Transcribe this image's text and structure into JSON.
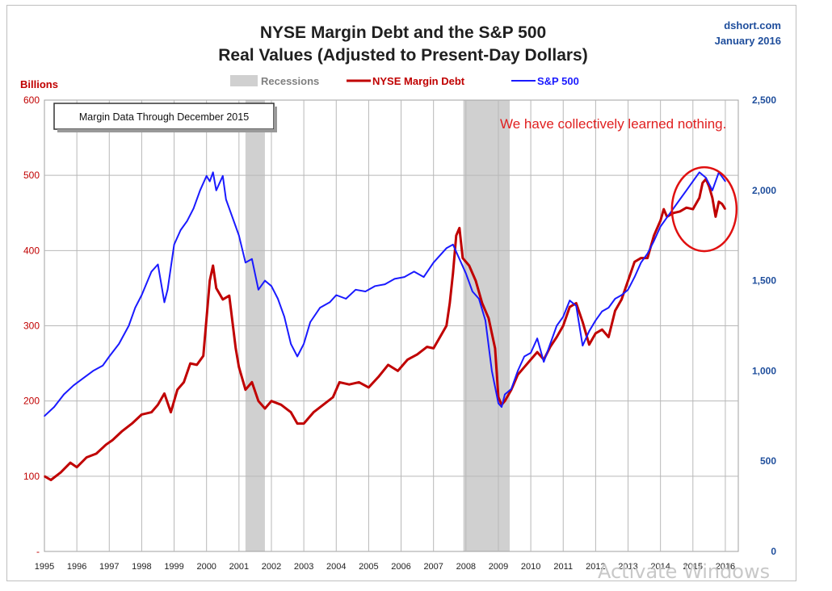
{
  "chart_data": {
    "type": "line",
    "title": "NYSE Margin Debt and the S&P 500",
    "subtitle": "Real Values (Adjusted to Present-Day Dollars)",
    "source": "dshort.com",
    "source_date": "January 2016",
    "annotation": "We have collectively learned nothing.",
    "note_box": "Margin Data Through December 2015",
    "left_axis": {
      "label": "Billions",
      "min": 0,
      "max": 600,
      "ticks": [
        {
          "v": 600,
          "t": "600"
        },
        {
          "v": 500,
          "t": "500"
        },
        {
          "v": 400,
          "t": "400"
        },
        {
          "v": 300,
          "t": "300"
        },
        {
          "v": 200,
          "t": "200"
        },
        {
          "v": 100,
          "t": "100"
        },
        {
          "v": 0,
          "t": "-"
        }
      ]
    },
    "right_axis": {
      "min": 0,
      "max": 2500,
      "ticks": [
        {
          "v": 2500,
          "t": "2,500"
        },
        {
          "v": 2000,
          "t": "2,000"
        },
        {
          "v": 1500,
          "t": "1,500"
        },
        {
          "v": 1000,
          "t": "1,000"
        },
        {
          "v": 500,
          "t": "500"
        },
        {
          "v": 0,
          "t": "0"
        }
      ]
    },
    "x_axis": {
      "min": 1995.0,
      "max": 2016.4,
      "ticks": [
        "1995",
        "1996",
        "1997",
        "1998",
        "1999",
        "2000",
        "2001",
        "2002",
        "2003",
        "2004",
        "2005",
        "2006",
        "2007",
        "2008",
        "2009",
        "2010",
        "2011",
        "2012",
        "2013",
        "2014",
        "2015",
        "2016"
      ]
    },
    "recessions": [
      {
        "start": 2001.2,
        "end": 2001.8
      },
      {
        "start": 2007.92,
        "end": 2009.35
      }
    ],
    "legend": [
      {
        "name": "Recessions",
        "color": "#d0d0d0"
      },
      {
        "name": "NYSE Margin Debt",
        "color": "#c00000"
      },
      {
        "name": "S&P 500",
        "color": "#1a1aff"
      }
    ],
    "series": [
      {
        "name": "NYSE Margin Debt",
        "color": "#c00000",
        "axis": "left",
        "x": [
          1995.0,
          1995.2,
          1995.5,
          1995.8,
          1996.0,
          1996.3,
          1996.6,
          1996.9,
          1997.1,
          1997.4,
          1997.7,
          1998.0,
          1998.3,
          1998.5,
          1998.7,
          1998.9,
          1999.1,
          1999.3,
          1999.5,
          1999.7,
          1999.9,
          2000.0,
          2000.1,
          2000.2,
          2000.3,
          2000.5,
          2000.7,
          2000.9,
          2001.0,
          2001.2,
          2001.4,
          2001.6,
          2001.8,
          2002.0,
          2002.3,
          2002.6,
          2002.8,
          2003.0,
          2003.3,
          2003.6,
          2003.9,
          2004.1,
          2004.4,
          2004.7,
          2005.0,
          2005.3,
          2005.6,
          2005.9,
          2006.2,
          2006.5,
          2006.8,
          2007.0,
          2007.2,
          2007.4,
          2007.5,
          2007.6,
          2007.7,
          2007.8,
          2007.9,
          2008.1,
          2008.3,
          2008.5,
          2008.7,
          2008.9,
          2009.0,
          2009.1,
          2009.2,
          2009.4,
          2009.6,
          2009.8,
          2010.0,
          2010.2,
          2010.4,
          2010.6,
          2010.8,
          2011.0,
          2011.2,
          2011.4,
          2011.6,
          2011.8,
          2012.0,
          2012.2,
          2012.4,
          2012.6,
          2012.8,
          2013.0,
          2013.2,
          2013.4,
          2013.6,
          2013.8,
          2014.0,
          2014.1,
          2014.2,
          2014.4,
          2014.6,
          2014.8,
          2015.0,
          2015.2,
          2015.3,
          2015.4,
          2015.5,
          2015.6,
          2015.7,
          2015.8,
          2015.9,
          2016.0
        ],
        "values": [
          100,
          95,
          105,
          118,
          112,
          125,
          130,
          142,
          148,
          160,
          170,
          182,
          185,
          195,
          210,
          185,
          215,
          225,
          250,
          248,
          260,
          310,
          360,
          380,
          350,
          335,
          340,
          270,
          245,
          215,
          225,
          200,
          190,
          200,
          195,
          185,
          170,
          170,
          185,
          195,
          205,
          225,
          222,
          225,
          218,
          232,
          248,
          240,
          255,
          262,
          272,
          270,
          285,
          300,
          330,
          370,
          420,
          430,
          390,
          380,
          360,
          330,
          310,
          270,
          205,
          195,
          200,
          215,
          235,
          245,
          255,
          265,
          255,
          272,
          285,
          300,
          325,
          330,
          305,
          275,
          290,
          295,
          285,
          320,
          335,
          360,
          385,
          390,
          390,
          420,
          440,
          455,
          445,
          450,
          452,
          457,
          455,
          470,
          490,
          495,
          485,
          470,
          445,
          465,
          462,
          455
        ]
      },
      {
        "name": "S&P 500",
        "color": "#1a1aff",
        "axis": "right",
        "x": [
          1995.0,
          1995.3,
          1995.6,
          1995.9,
          1996.2,
          1996.5,
          1996.8,
          1997.0,
          1997.3,
          1997.6,
          1997.8,
          1998.0,
          1998.3,
          1998.5,
          1998.7,
          1998.8,
          1999.0,
          1999.2,
          1999.4,
          1999.6,
          1999.8,
          2000.0,
          2000.1,
          2000.2,
          2000.3,
          2000.5,
          2000.6,
          2000.8,
          2000.9,
          2001.0,
          2001.2,
          2001.4,
          2001.6,
          2001.8,
          2002.0,
          2002.2,
          2002.4,
          2002.6,
          2002.8,
          2003.0,
          2003.2,
          2003.5,
          2003.8,
          2004.0,
          2004.3,
          2004.6,
          2004.9,
          2005.2,
          2005.5,
          2005.8,
          2006.1,
          2006.4,
          2006.7,
          2007.0,
          2007.2,
          2007.4,
          2007.6,
          2007.8,
          2008.0,
          2008.2,
          2008.4,
          2008.6,
          2008.8,
          2009.0,
          2009.1,
          2009.2,
          2009.4,
          2009.6,
          2009.8,
          2010.0,
          2010.2,
          2010.4,
          2010.6,
          2010.8,
          2011.0,
          2011.2,
          2011.4,
          2011.6,
          2011.8,
          2012.0,
          2012.2,
          2012.4,
          2012.6,
          2012.8,
          2013.0,
          2013.2,
          2013.4,
          2013.6,
          2013.8,
          2014.0,
          2014.2,
          2014.4,
          2014.6,
          2014.8,
          2015.0,
          2015.2,
          2015.4,
          2015.6,
          2015.8,
          2016.0
        ],
        "values": [
          750,
          800,
          870,
          920,
          960,
          1000,
          1030,
          1080,
          1150,
          1250,
          1350,
          1420,
          1550,
          1590,
          1380,
          1450,
          1700,
          1780,
          1830,
          1900,
          2000,
          2080,
          2050,
          2100,
          2000,
          2080,
          1950,
          1850,
          1800,
          1750,
          1600,
          1620,
          1450,
          1500,
          1470,
          1400,
          1300,
          1150,
          1080,
          1150,
          1270,
          1350,
          1380,
          1420,
          1400,
          1450,
          1440,
          1470,
          1480,
          1510,
          1520,
          1550,
          1520,
          1600,
          1640,
          1680,
          1700,
          1620,
          1540,
          1440,
          1400,
          1280,
          1000,
          820,
          800,
          870,
          900,
          1000,
          1080,
          1100,
          1180,
          1050,
          1150,
          1250,
          1300,
          1390,
          1360,
          1140,
          1220,
          1280,
          1330,
          1350,
          1400,
          1420,
          1450,
          1520,
          1600,
          1650,
          1720,
          1800,
          1850,
          1900,
          1950,
          2000,
          2050,
          2100,
          2070,
          2000,
          2100,
          2050
        ]
      }
    ]
  }
}
